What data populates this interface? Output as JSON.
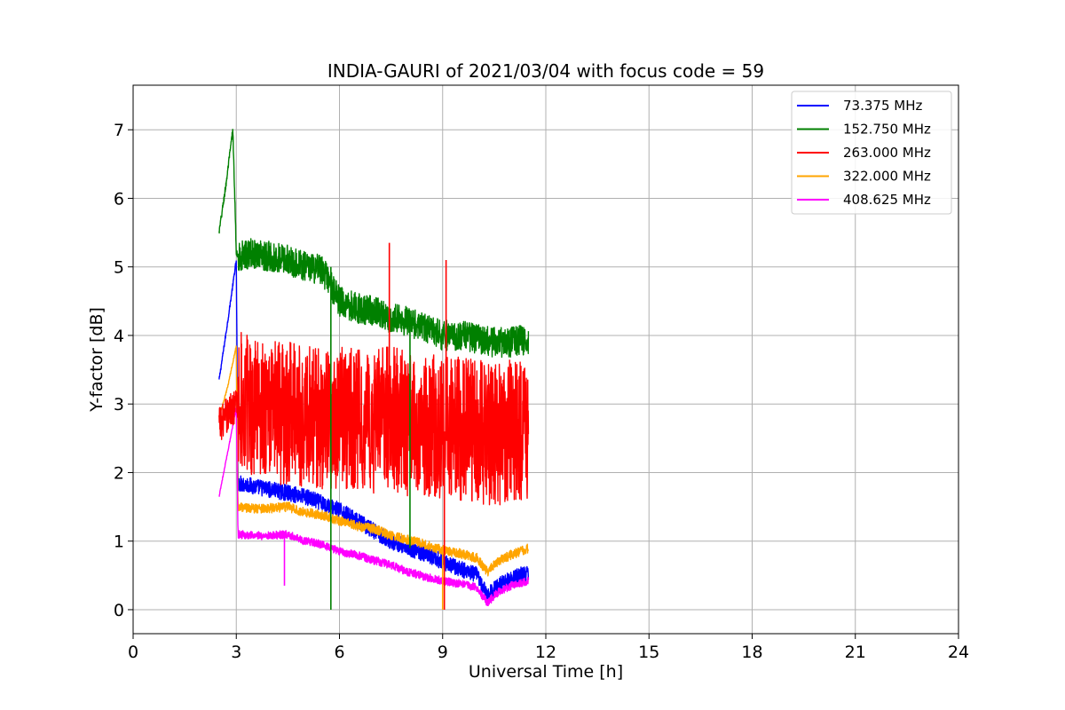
{
  "chart_data": {
    "type": "line",
    "title": "INDIA-GAURI of 2021/03/04 with focus code = 59",
    "xlabel": "Universal Time [h]",
    "ylabel": "Y-factor [dB]",
    "xlim": [
      0,
      24
    ],
    "ylim": [
      -0.35,
      7.65
    ],
    "x_ticks": [
      0,
      3,
      6,
      9,
      12,
      15,
      18,
      21,
      24
    ],
    "y_ticks": [
      0,
      1,
      2,
      3,
      4,
      5,
      6,
      7
    ],
    "grid": true,
    "legend_position": "top-right",
    "series": [
      {
        "name": "73.375 MHz",
        "color": "#0000ff",
        "x": [
          2.5,
          2.75,
          3.0,
          3.05,
          3.5,
          4.0,
          4.5,
          5.0,
          5.5,
          6.0,
          6.5,
          7.0,
          7.5,
          8.0,
          8.5,
          9.0,
          9.5,
          10.0,
          10.3,
          10.6,
          11.0,
          11.5
        ],
        "y": [
          3.35,
          4.2,
          5.1,
          1.85,
          1.8,
          1.75,
          1.7,
          1.65,
          1.55,
          1.45,
          1.3,
          1.15,
          1.0,
          0.9,
          0.8,
          0.7,
          0.6,
          0.5,
          0.2,
          0.35,
          0.45,
          0.55
        ],
        "spread": 0.12
      },
      {
        "name": "152.750 MHz",
        "color": "#008000",
        "x": [
          2.5,
          2.7,
          2.9,
          3.0,
          3.05,
          3.5,
          4.0,
          4.5,
          5.0,
          5.5,
          6.0,
          6.5,
          7.0,
          7.5,
          8.0,
          8.5,
          9.0,
          9.5,
          10.0,
          10.5,
          11.0,
          11.5
        ],
        "y": [
          5.5,
          6.2,
          7.0,
          5.2,
          5.15,
          5.2,
          5.15,
          5.1,
          5.0,
          4.95,
          4.5,
          4.4,
          4.35,
          4.25,
          4.2,
          4.1,
          4.0,
          4.0,
          3.95,
          3.9,
          3.9,
          3.95
        ],
        "spread": 0.22
      },
      {
        "name": "263.000 MHz",
        "color": "#ff0000",
        "x": [
          2.5,
          3.0,
          3.1,
          3.5,
          4.0,
          4.5,
          5.0,
          5.5,
          6.0,
          6.5,
          7.0,
          7.5,
          8.0,
          8.5,
          9.0,
          9.5,
          10.0,
          10.5,
          11.0,
          11.5
        ],
        "y": [
          2.7,
          3.0,
          3.05,
          3.0,
          2.9,
          2.85,
          2.85,
          2.8,
          2.8,
          2.75,
          2.75,
          2.8,
          2.7,
          2.7,
          2.65,
          2.65,
          2.6,
          2.55,
          2.6,
          2.6
        ],
        "spread": 1.05
      },
      {
        "name": "322.000 MHz",
        "color": "#ffa500",
        "x": [
          2.5,
          2.75,
          3.0,
          3.05,
          3.5,
          4.0,
          4.5,
          5.0,
          5.5,
          6.0,
          6.5,
          7.0,
          7.5,
          8.0,
          8.5,
          9.0,
          9.5,
          10.0,
          10.3,
          10.6,
          11.0,
          11.5
        ],
        "y": [
          2.8,
          3.25,
          3.85,
          1.5,
          1.48,
          1.48,
          1.5,
          1.42,
          1.38,
          1.3,
          1.22,
          1.18,
          1.08,
          1.02,
          0.95,
          0.87,
          0.82,
          0.75,
          0.55,
          0.7,
          0.8,
          0.9
        ],
        "spread": 0.07
      },
      {
        "name": "408.625 MHz",
        "color": "#ff00ff",
        "x": [
          2.5,
          2.75,
          3.0,
          3.05,
          3.5,
          4.0,
          4.5,
          5.0,
          5.5,
          6.0,
          6.5,
          7.0,
          7.5,
          8.0,
          8.5,
          9.0,
          9.5,
          10.0,
          10.3,
          10.6,
          11.0,
          11.5
        ],
        "y": [
          1.65,
          2.3,
          2.95,
          1.1,
          1.08,
          1.08,
          1.1,
          1.0,
          0.95,
          0.85,
          0.8,
          0.72,
          0.65,
          0.55,
          0.48,
          0.42,
          0.38,
          0.32,
          0.1,
          0.25,
          0.35,
          0.42
        ],
        "spread": 0.06
      }
    ],
    "spikes": [
      {
        "series": "152.750 MHz",
        "x": 5.75,
        "y_from": 5.0,
        "y_to": 0.0
      },
      {
        "series": "152.750 MHz",
        "x": 8.05,
        "y_from": 4.2,
        "y_to": 0.9
      },
      {
        "series": "263.000 MHz",
        "x": 7.45,
        "y_from": 2.8,
        "y_to": 5.35
      },
      {
        "series": "263.000 MHz",
        "x": 9.05,
        "y_from": 2.6,
        "y_to": 0.0
      },
      {
        "series": "263.000 MHz",
        "x": 9.1,
        "y_from": 2.6,
        "y_to": 5.1
      },
      {
        "series": "322.000 MHz",
        "x": 9.0,
        "y_from": 0.85,
        "y_to": 0.0
      },
      {
        "series": "408.625 MHz",
        "x": 4.4,
        "y_from": 1.05,
        "y_to": 0.35
      }
    ]
  }
}
